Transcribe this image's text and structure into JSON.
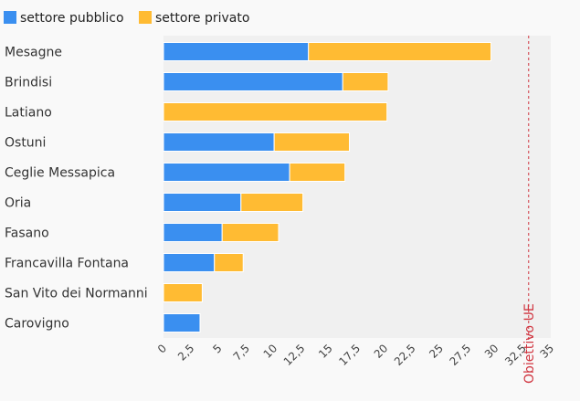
{
  "chart_data": {
    "type": "bar",
    "orientation": "horizontal",
    "stacked": true,
    "categories": [
      "Mesagne",
      "Brindisi",
      "Latiano",
      "Ostuni",
      "Ceglie Messapica",
      "Oria",
      "Fasano",
      "Francavilla Fontana",
      "San Vito dei Normanni",
      "Carovigno"
    ],
    "series": [
      {
        "name": "settore pubblico",
        "color": "#3a8ff0",
        "values": [
          13.1,
          16.2,
          0,
          10.0,
          11.4,
          7.0,
          5.3,
          4.6,
          0,
          3.3
        ]
      },
      {
        "name": "settore privato",
        "color": "#ffbb33",
        "values": [
          16.5,
          4.1,
          20.2,
          6.8,
          5.0,
          5.6,
          5.1,
          2.6,
          3.5,
          0
        ]
      }
    ],
    "xlim": [
      0,
      35
    ],
    "xticks": [
      "0",
      "2,5",
      "5",
      "7,5",
      "10",
      "12,5",
      "15",
      "17,5",
      "20",
      "22,5",
      "25",
      "27,5",
      "30",
      "32,5",
      "35"
    ],
    "target": {
      "value": 33,
      "label": "Obiettivo UE",
      "color": "#d0343f"
    },
    "legend_position": "top-left",
    "title": "",
    "xlabel": "",
    "ylabel": ""
  }
}
